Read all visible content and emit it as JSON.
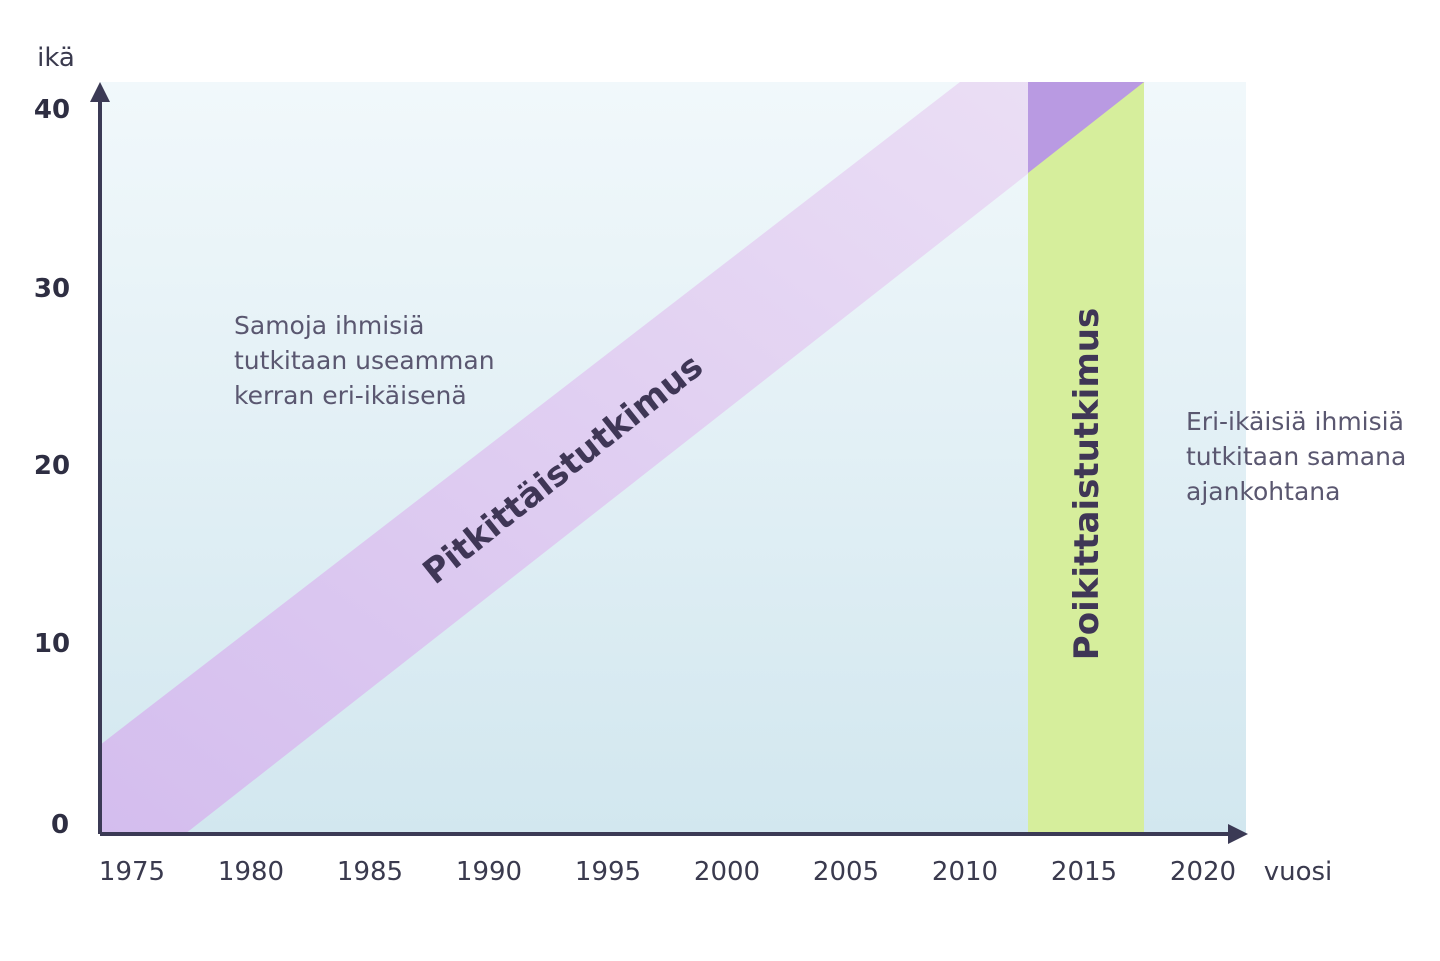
{
  "axes": {
    "y_label": "ikä",
    "x_label": "vuosi",
    "y_ticks": [
      "0",
      "10",
      "20",
      "30",
      "40"
    ],
    "x_ticks": [
      "1975",
      "1980",
      "1985",
      "1990",
      "1995",
      "2000",
      "2005",
      "2010",
      "2015",
      "2020"
    ]
  },
  "bands": {
    "longitudinal": {
      "label": "Pitkittäistutkimus",
      "color": "#d9c4ee"
    },
    "cross_sectional": {
      "label": "Poikittaistutkimus",
      "color": "#d6ee9c"
    },
    "overlap_color": "#b99ae2"
  },
  "notes": {
    "longitudinal": "Samoja ihmisiä\ntutkitaan useamman\nkerran eri-ikäisenä",
    "cross_sectional": "Eri-ikäisiä ihmisiä\ntutkitaan samana\najankohtana"
  },
  "colors": {
    "background_top": "#f1f8fb",
    "background_bottom": "#d2e7ef",
    "axis": "#3b3a55"
  }
}
